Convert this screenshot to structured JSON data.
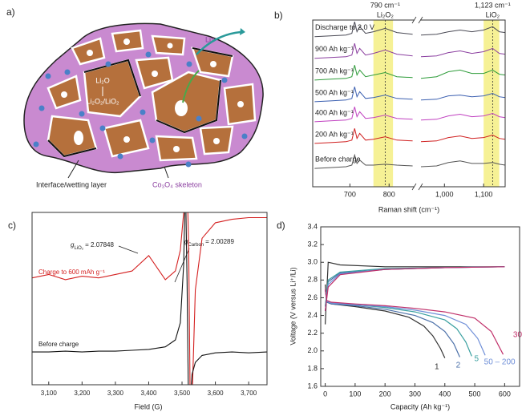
{
  "diagram": {
    "panel": "a)",
    "labels": {
      "li_ion": "Li⁺",
      "li2o": "Li₂O",
      "peroxide": "Li₂O₂/LiO₂",
      "interface": "Interface/wetting layer",
      "skeleton": "Co₃O₄ skeleton"
    }
  },
  "chart_data": [
    {
      "panel": "b)",
      "type": "line",
      "xlabel": "Raman shift (cm⁻¹)",
      "xlim": [
        605,
        1155
      ],
      "x_break": [
        865,
        938
      ],
      "ylim": [
        0,
        10
      ],
      "xticks": [
        700,
        800,
        {
          "value": 1000,
          "label": "1,000"
        },
        {
          "value": 1100,
          "label": "1,100"
        }
      ],
      "highlights": [
        {
          "range": [
            760,
            810
          ],
          "line": 790,
          "label": "790 cm⁻¹",
          "species": "Li₂O₂"
        },
        {
          "range": [
            1100,
            1140
          ],
          "line": 1123,
          "label": "1,123 cm⁻¹",
          "species": "LiO₂"
        }
      ],
      "x": [
        610,
        650,
        690,
        705,
        712,
        718,
        725,
        740,
        760,
        790,
        820,
        860,
        900,
        940,
        980,
        1010,
        1040,
        1070,
        1100,
        1123,
        1140,
        1155
      ],
      "series": [
        {
          "name": "Discharge to 2.0 V",
          "color": "#4a4a55",
          "values": [
            9.0,
            9.05,
            9.1,
            9.2,
            9.9,
            9.3,
            9.6,
            9.2,
            9.3,
            9.5,
            9.25,
            9.15,
            null,
            9.1,
            9.15,
            9.3,
            9.4,
            9.3,
            9.4,
            9.6,
            9.3,
            9.25
          ]
        },
        {
          "name": "900 Ah kg⁻¹",
          "color": "#8b3fa0",
          "values": [
            7.7,
            7.75,
            7.8,
            7.9,
            8.6,
            8.0,
            8.3,
            7.9,
            8.0,
            8.2,
            7.95,
            7.85,
            null,
            7.8,
            7.85,
            8.05,
            8.15,
            8.0,
            8.1,
            8.3,
            8.0,
            7.95
          ]
        },
        {
          "name": "700 Ah kg⁻¹",
          "color": "#2e9c3a",
          "values": [
            6.4,
            6.45,
            6.5,
            6.6,
            7.3,
            6.7,
            7.0,
            6.6,
            6.7,
            6.85,
            6.6,
            6.55,
            null,
            6.5,
            6.6,
            6.9,
            7.0,
            6.8,
            6.8,
            7.0,
            6.75,
            6.7
          ]
        },
        {
          "name": "500 Ah kg⁻¹",
          "color": "#3b5fb0",
          "values": [
            5.1,
            5.15,
            5.2,
            5.3,
            6.0,
            5.4,
            5.7,
            5.3,
            5.35,
            5.5,
            5.3,
            5.25,
            null,
            5.2,
            5.25,
            5.45,
            5.5,
            5.4,
            5.45,
            5.6,
            5.4,
            5.35
          ]
        },
        {
          "name": "400 Ah kg⁻¹",
          "color": "#c040c0",
          "values": [
            3.9,
            3.95,
            4.0,
            4.1,
            4.8,
            4.2,
            4.5,
            4.1,
            4.15,
            4.3,
            4.1,
            4.05,
            null,
            4.0,
            4.05,
            4.25,
            4.35,
            4.2,
            4.25,
            4.4,
            4.2,
            4.15
          ]
        },
        {
          "name": "200 Ah kg⁻¹",
          "color": "#d02020",
          "values": [
            2.6,
            2.65,
            2.7,
            2.8,
            3.5,
            2.9,
            3.2,
            2.8,
            2.85,
            3.0,
            2.8,
            2.75,
            null,
            2.7,
            2.75,
            2.95,
            3.05,
            2.9,
            2.95,
            3.1,
            2.9,
            2.85
          ]
        },
        {
          "name": "Before charge",
          "color": "#555555",
          "values": [
            1.1,
            1.15,
            1.2,
            1.3,
            1.9,
            1.4,
            1.6,
            1.3,
            1.3,
            1.35,
            1.3,
            1.25,
            null,
            1.2,
            1.25,
            1.45,
            1.55,
            1.4,
            1.4,
            1.45,
            1.35,
            1.3
          ]
        }
      ]
    },
    {
      "panel": "c)",
      "type": "line",
      "xlabel": "Field (G)",
      "xlim": [
        3050,
        3755
      ],
      "ylim": [
        0,
        10
      ],
      "xticks": [
        {
          "value": 3100,
          "label": "3,100"
        },
        {
          "value": 3200,
          "label": "3,200"
        },
        {
          "value": 3300,
          "label": "3,300"
        },
        {
          "value": 3400,
          "label": "3,400"
        },
        {
          "value": 3500,
          "label": "3,500"
        },
        {
          "value": 3600,
          "label": "3,600"
        },
        {
          "value": 3700,
          "label": "3,700"
        }
      ],
      "x": [
        3050,
        3100,
        3150,
        3200,
        3250,
        3300,
        3350,
        3400,
        3450,
        3480,
        3495,
        3505,
        3510,
        3515,
        3520,
        3525,
        3530,
        3540,
        3560,
        3600,
        3650,
        3700,
        3755
      ],
      "series": [
        {
          "name": "Charge to 600 mAh g⁻¹",
          "color": "#d42020",
          "values": [
            6.2,
            6.4,
            6.1,
            6.3,
            6.2,
            6.4,
            6.6,
            7.5,
            6.1,
            6.6,
            7.8,
            10,
            12,
            12,
            8,
            -2,
            -1,
            5.5,
            8.5,
            9.4,
            9.6,
            9.7,
            9.7
          ]
        },
        {
          "name": "Before charge",
          "color": "#111111",
          "values": [
            1.9,
            1.9,
            1.95,
            1.9,
            1.95,
            1.95,
            2.0,
            2.05,
            2.2,
            2.6,
            3.6,
            7,
            12,
            6,
            -2,
            -1,
            0.6,
            1.3,
            1.7,
            1.85,
            1.9,
            1.85,
            1.9
          ]
        }
      ],
      "annotations": [
        {
          "symbol": "g",
          "subscript": "LiO₂",
          "text": "= 2.07848"
        },
        {
          "symbol": "g",
          "subscript": "Carbon",
          "text": "= 2.00289"
        }
      ]
    },
    {
      "panel": "d)",
      "type": "line",
      "xlabel": "Capacity (Ah kg⁻¹)",
      "ylabel": "Voltage (V versus Li⁺/Li)",
      "xlim": [
        -15,
        650
      ],
      "ylim": [
        1.6,
        3.4
      ],
      "xticks": [
        0,
        100,
        200,
        300,
        400,
        500,
        600
      ],
      "yticks": [
        1.6,
        1.8,
        {
          "value": 2,
          "label": "2.0"
        },
        2.2,
        2.4,
        2.6,
        2.8,
        {
          "value": 3,
          "label": "3.0"
        },
        3.2,
        3.4
      ],
      "series": [
        {
          "name": "1",
          "color": "#333333",
          "discharge": {
            "x": [
              0,
              5,
              20,
              100,
              200,
              280,
              330,
              360,
              385,
              400
            ],
            "values": [
              2.75,
              2.55,
              2.53,
              2.5,
              2.45,
              2.38,
              2.28,
              2.17,
              2.03,
              1.92
            ]
          },
          "charge": {
            "x": [
              0,
              10,
              50,
              200,
              400,
              600
            ],
            "values": [
              2.3,
              3.0,
              2.97,
              2.95,
              2.95,
              2.95
            ]
          }
        },
        {
          "name": "2",
          "color": "#4a6fa8",
          "discharge": {
            "x": [
              0,
              5,
              20,
              100,
              200,
              300,
              360,
              400,
              430,
              450
            ],
            "values": [
              2.7,
              2.55,
              2.53,
              2.51,
              2.47,
              2.4,
              2.32,
              2.22,
              2.08,
              1.93
            ]
          },
          "charge": {
            "x": [
              0,
              10,
              50,
              200,
              400,
              600
            ],
            "values": [
              2.5,
              2.78,
              2.88,
              2.92,
              2.94,
              2.95
            ]
          }
        },
        {
          "name": "5",
          "color": "#3aa0a0",
          "discharge": {
            "x": [
              0,
              5,
              20,
              100,
              200,
              300,
              400,
              440,
              470,
              490
            ],
            "values": [
              2.7,
              2.56,
              2.54,
              2.52,
              2.49,
              2.44,
              2.35,
              2.25,
              2.1,
              1.94
            ]
          },
          "charge": {
            "x": [
              0,
              10,
              50,
              200,
              400,
              600
            ],
            "values": [
              2.5,
              2.8,
              2.89,
              2.93,
              2.94,
              2.95
            ]
          }
        },
        {
          "name": "50 – 200",
          "color": "#6f8fd8",
          "discharge": {
            "x": [
              0,
              5,
              20,
              100,
              200,
              300,
              400,
              470,
              510,
              535
            ],
            "values": [
              2.7,
              2.56,
              2.54,
              2.52,
              2.5,
              2.46,
              2.4,
              2.3,
              2.14,
              1.95
            ]
          },
          "charge": {
            "x": [
              0,
              10,
              50,
              200,
              400,
              600
            ],
            "values": [
              2.45,
              2.75,
              2.87,
              2.92,
              2.94,
              2.95
            ]
          }
        },
        {
          "name": "30",
          "color": "#c0306a",
          "discharge": {
            "x": [
              0,
              5,
              20,
              100,
              200,
              300,
              400,
              500,
              555,
              595
            ],
            "values": [
              2.7,
              2.57,
              2.55,
              2.53,
              2.51,
              2.48,
              2.44,
              2.37,
              2.22,
              1.96
            ]
          },
          "charge": {
            "x": [
              0,
              10,
              50,
              200,
              400,
              600
            ],
            "values": [
              2.45,
              2.72,
              2.86,
              2.92,
              2.94,
              2.95
            ]
          }
        }
      ]
    }
  ]
}
